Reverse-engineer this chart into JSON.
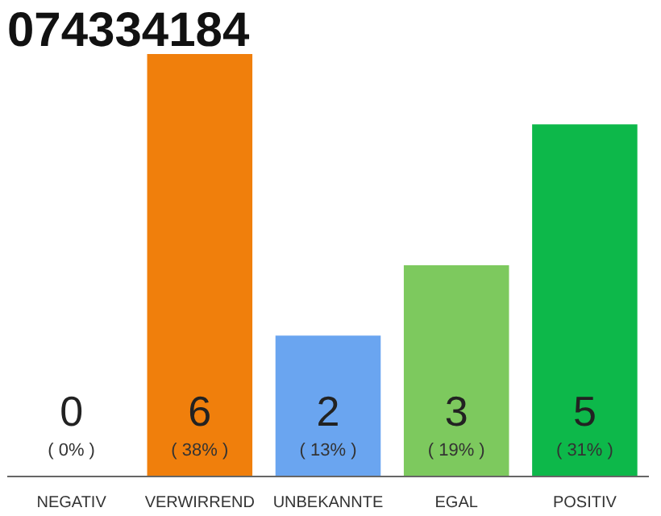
{
  "chart_data": {
    "type": "bar",
    "title": "074334184",
    "categories": [
      "NEGATIV",
      "VERWIRREND",
      "UNBEKANNTE",
      "EGAL",
      "POSITIV"
    ],
    "values": [
      0,
      6,
      2,
      3,
      5
    ],
    "colors": [
      "#888888",
      "#f07f0c",
      "#6aa5f0",
      "#7dc95e",
      "#0db84a"
    ],
    "data_labels": true,
    "annotations": [
      {
        "text": "( 0% )",
        "x": "NEGATIV",
        "y": 0
      },
      {
        "text": "( 38% )",
        "x": "VERWIRREND",
        "y": 0
      },
      {
        "text": "( 13% )",
        "x": "UNBEKANNTE",
        "y": 0
      },
      {
        "text": "( 19% )",
        "x": "EGAL",
        "y": 0
      },
      {
        "text": "( 31% )",
        "x": "POSITIV",
        "y": 0
      }
    ],
    "tick_labels": "x",
    "grid": false
  }
}
